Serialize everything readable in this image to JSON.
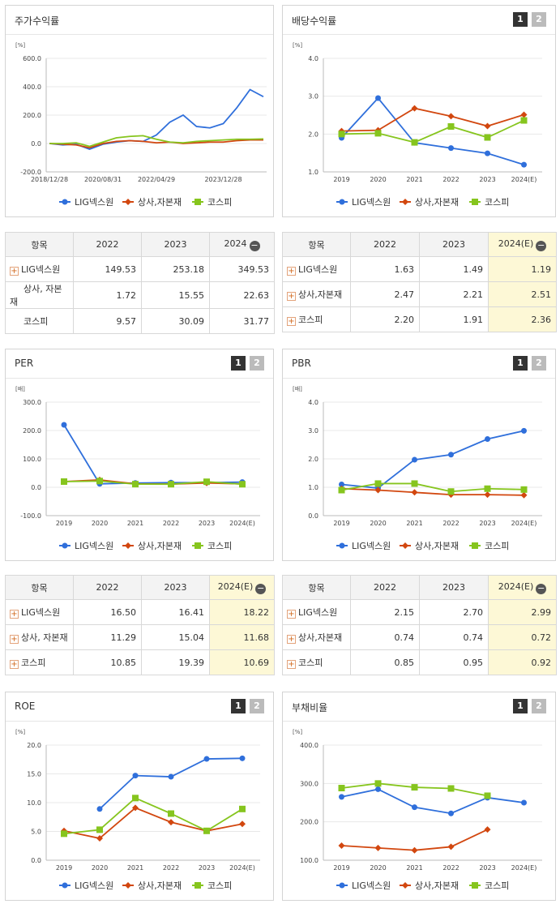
{
  "colors": {
    "lig": "#2f6fdb",
    "sector": "#d2470f",
    "kospi": "#86c51e"
  },
  "legend": [
    "LIG넥스원",
    "상사,자본재",
    "코스피"
  ],
  "page_buttons": [
    "1",
    "2"
  ],
  "charts": {
    "stock": {
      "title": "주가수익률",
      "unit": "[%]",
      "yticks": [
        "600.0",
        "400.0",
        "200.0",
        "0.0",
        "-200.0"
      ],
      "xticks": [
        "2018/12/28",
        "2020/08/31",
        "2022/04/29",
        "2023/12/28"
      ]
    },
    "dividend": {
      "title": "배당수익률",
      "unit": "[%]",
      "yticks": [
        "4.0",
        "3.0",
        "2.0",
        "1.0"
      ],
      "xticks": [
        "2019",
        "2020",
        "2021",
        "2022",
        "2023",
        "2024(E)"
      ]
    },
    "per": {
      "title": "PER",
      "unit": "[배]",
      "yticks": [
        "300.0",
        "200.0",
        "100.0",
        "0.0",
        "-100.0"
      ],
      "xticks": [
        "2019",
        "2020",
        "2021",
        "2022",
        "2023",
        "2024(E)"
      ]
    },
    "pbr": {
      "title": "PBR",
      "unit": "[배]",
      "yticks": [
        "4.0",
        "3.0",
        "2.0",
        "1.0",
        "0.0"
      ],
      "xticks": [
        "2019",
        "2020",
        "2021",
        "2022",
        "2023",
        "2024(E)"
      ]
    },
    "roe": {
      "title": "ROE",
      "unit": "[%]",
      "yticks": [
        "20.0",
        "15.0",
        "10.0",
        "5.0",
        "0.0"
      ],
      "xticks": [
        "2019",
        "2020",
        "2021",
        "2022",
        "2023",
        "2024(E)"
      ]
    },
    "debt": {
      "title": "부채비율",
      "unit": "[%]",
      "yticks": [
        "400.0",
        "300.0",
        "200.0",
        "100.0"
      ],
      "xticks": [
        "2019",
        "2020",
        "2021",
        "2022",
        "2023",
        "2024(E)"
      ]
    }
  },
  "tables": {
    "stock": {
      "headers": [
        "항목",
        "2022",
        "2023",
        "2024"
      ],
      "rows": [
        {
          "name": "LIG넥스원",
          "plus": true,
          "values": [
            "149.53",
            "253.18",
            "349.53"
          ]
        },
        {
          "name": "상사, 자본재",
          "plus": false,
          "values": [
            "1.72",
            "15.55",
            "22.63"
          ]
        },
        {
          "name": "코스피",
          "plus": false,
          "values": [
            "9.57",
            "30.09",
            "31.77"
          ]
        }
      ]
    },
    "dividend": {
      "headers": [
        "항목",
        "2022",
        "2023",
        "2024(E)"
      ],
      "rows": [
        {
          "name": "LIG넥스원",
          "plus": true,
          "values": [
            "1.63",
            "1.49",
            "1.19"
          ]
        },
        {
          "name": "상사,자본재",
          "plus": true,
          "values": [
            "2.47",
            "2.21",
            "2.51"
          ]
        },
        {
          "name": "코스피",
          "plus": true,
          "values": [
            "2.20",
            "1.91",
            "2.36"
          ]
        }
      ]
    },
    "per": {
      "headers": [
        "항목",
        "2022",
        "2023",
        "2024(E)"
      ],
      "rows": [
        {
          "name": "LIG넥스원",
          "plus": true,
          "values": [
            "16.50",
            "16.41",
            "18.22"
          ]
        },
        {
          "name": "상사, 자본재",
          "plus": true,
          "values": [
            "11.29",
            "15.04",
            "11.68"
          ]
        },
        {
          "name": "코스피",
          "plus": true,
          "values": [
            "10.85",
            "19.39",
            "10.69"
          ]
        }
      ]
    },
    "pbr": {
      "headers": [
        "항목",
        "2022",
        "2023",
        "2024(E)"
      ],
      "rows": [
        {
          "name": "LIG넥스원",
          "plus": true,
          "values": [
            "2.15",
            "2.70",
            "2.99"
          ]
        },
        {
          "name": "상사,자본재",
          "plus": true,
          "values": [
            "0.74",
            "0.74",
            "0.72"
          ]
        },
        {
          "name": "코스피",
          "plus": true,
          "values": [
            "0.85",
            "0.95",
            "0.92"
          ]
        }
      ]
    }
  },
  "chart_data": [
    {
      "type": "line",
      "title": "주가수익률",
      "ylabel": "[%]",
      "ylim": [
        -200,
        600
      ],
      "x": [
        "2018/12/28",
        "2019/06",
        "2019/12",
        "2020/04",
        "2020/08/31",
        "2021/02",
        "2021/08",
        "2022/01",
        "2022/04/29",
        "2022/08",
        "2022/12",
        "2023/04",
        "2023/08",
        "2023/12/28",
        "2024/04",
        "2024/08",
        "2024/12"
      ],
      "series": [
        {
          "name": "LIG넥스원",
          "values": [
            0,
            -10,
            -5,
            -40,
            -5,
            10,
            20,
            15,
            60,
            150,
            200,
            120,
            110,
            140,
            250,
            380,
            330
          ]
        },
        {
          "name": "상사,자본재",
          "values": [
            0,
            -5,
            -10,
            -30,
            0,
            15,
            20,
            15,
            5,
            10,
            0,
            5,
            10,
            10,
            20,
            25,
            25
          ]
        },
        {
          "name": "코스피",
          "values": [
            0,
            0,
            5,
            -20,
            10,
            40,
            50,
            55,
            30,
            10,
            5,
            15,
            20,
            25,
            30,
            30,
            32
          ]
        }
      ]
    },
    {
      "type": "line",
      "title": "배당수익률",
      "ylabel": "[%]",
      "ylim": [
        1,
        4
      ],
      "categories": [
        "2019",
        "2020",
        "2021",
        "2022",
        "2023",
        "2024(E)"
      ],
      "series": [
        {
          "name": "LIG넥스원",
          "values": [
            1.9,
            2.95,
            1.77,
            1.63,
            1.49,
            1.19
          ]
        },
        {
          "name": "상사,자본재",
          "values": [
            2.08,
            2.1,
            2.68,
            2.47,
            2.21,
            2.51
          ]
        },
        {
          "name": "코스피",
          "values": [
            2.0,
            2.02,
            1.78,
            2.2,
            1.91,
            2.36
          ]
        }
      ]
    },
    {
      "type": "line",
      "title": "PER",
      "ylabel": "[배]",
      "ylim": [
        -100,
        300
      ],
      "categories": [
        "2019",
        "2020",
        "2021",
        "2022",
        "2023",
        "2024(E)"
      ],
      "series": [
        {
          "name": "LIG넥스원",
          "values": [
            220,
            12,
            15,
            16.5,
            16.41,
            18.22
          ]
        },
        {
          "name": "상사,자본재",
          "values": [
            20,
            26,
            12,
            11.29,
            15.04,
            11.68
          ]
        },
        {
          "name": "코스피",
          "values": [
            20,
            22,
            11,
            10.85,
            19.39,
            10.69
          ]
        }
      ]
    },
    {
      "type": "line",
      "title": "PBR",
      "ylabel": "[배]",
      "ylim": [
        0,
        4
      ],
      "categories": [
        "2019",
        "2020",
        "2021",
        "2022",
        "2023",
        "2024(E)"
      ],
      "series": [
        {
          "name": "LIG넥스원",
          "values": [
            1.1,
            0.97,
            1.97,
            2.15,
            2.7,
            2.99
          ]
        },
        {
          "name": "상사,자본재",
          "values": [
            0.95,
            0.9,
            0.82,
            0.74,
            0.74,
            0.72
          ]
        },
        {
          "name": "코스피",
          "values": [
            0.9,
            1.13,
            1.13,
            0.85,
            0.95,
            0.92
          ]
        }
      ]
    },
    {
      "type": "line",
      "title": "ROE",
      "ylabel": "[%]",
      "ylim": [
        0,
        20
      ],
      "categories": [
        "2019",
        "2020",
        "2021",
        "2022",
        "2023",
        "2024(E)"
      ],
      "series": [
        {
          "name": "LIG넥스원",
          "values": [
            null,
            8.9,
            14.7,
            14.5,
            17.6,
            17.7
          ]
        },
        {
          "name": "상사,자본재",
          "values": [
            5.1,
            3.8,
            9.1,
            6.6,
            5.1,
            6.3
          ]
        },
        {
          "name": "코스피",
          "values": [
            4.6,
            5.3,
            10.8,
            8.1,
            5.1,
            8.9
          ]
        }
      ]
    },
    {
      "type": "line",
      "title": "부채비율",
      "ylabel": "[%]",
      "ylim": [
        100,
        400
      ],
      "categories": [
        "2019",
        "2020",
        "2021",
        "2022",
        "2023",
        "2024(E)"
      ],
      "series": [
        {
          "name": "LIG넥스원",
          "values": [
            265,
            285,
            238,
            222,
            263,
            250
          ]
        },
        {
          "name": "상사,자본재",
          "values": [
            138,
            132,
            126,
            135,
            180,
            null
          ]
        },
        {
          "name": "코스피",
          "values": [
            288,
            300,
            290,
            287,
            268,
            null
          ]
        }
      ]
    }
  ]
}
